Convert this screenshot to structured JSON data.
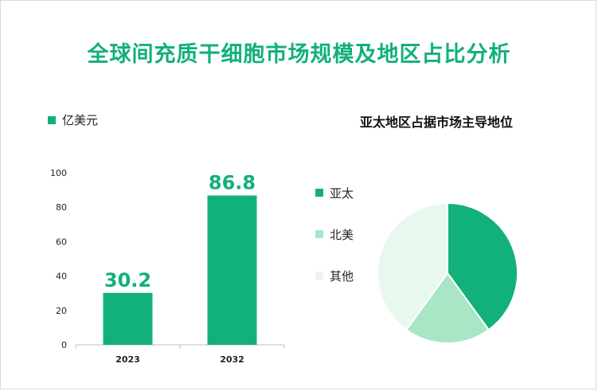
{
  "title": "全球间充质干细胞市场规模及地区占比分析",
  "colors": {
    "accent": "#12b07a",
    "bar": "#12b07a"
  },
  "chart_data": [
    {
      "type": "bar",
      "legend": "亿美元",
      "categories": [
        "2023",
        "2032"
      ],
      "values": [
        30.2,
        86.8
      ],
      "value_labels": [
        "30.2",
        "86.8"
      ],
      "ylim": [
        0,
        100
      ],
      "yticks": [
        0,
        20,
        40,
        60,
        80,
        100
      ],
      "grid": false,
      "legend_position": "top-left"
    },
    {
      "type": "pie",
      "title": "亚太地区占据市场主导地位",
      "legend_position": "left",
      "slices": [
        {
          "label": "亚太",
          "value": 40,
          "color": "#12b07a"
        },
        {
          "label": "北美",
          "value": 20,
          "color": "#a8e6c6"
        },
        {
          "label": "其他",
          "value": 40,
          "color": "#e8f8ef"
        }
      ]
    }
  ]
}
